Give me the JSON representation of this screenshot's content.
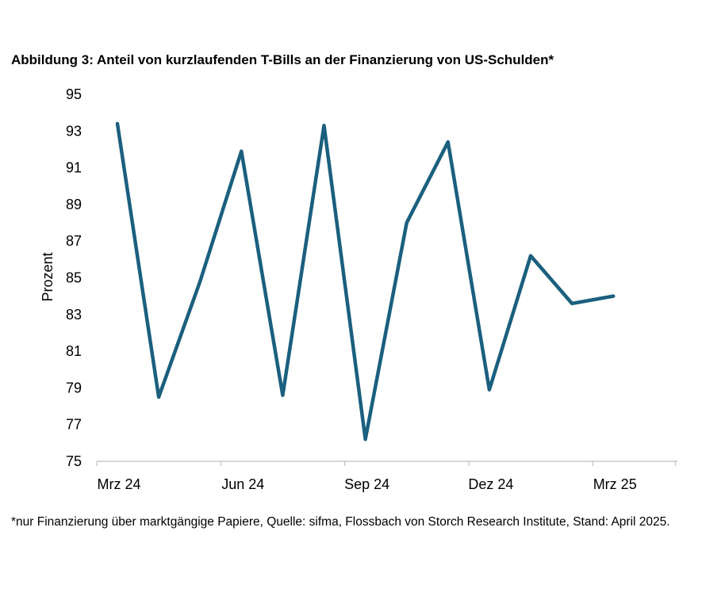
{
  "title": "Abbildung 3: Anteil von kurzlaufenden T-Bills an der Finanzierung von US-Schulden*",
  "footnote": "*nur Finanzierung über marktgängige Papiere, Quelle: sifma, Flossbach von Storch Research Institute, Stand: April 2025.",
  "chart_data": {
    "type": "line",
    "title": "Abbildung 3: Anteil von kurzlaufenden T-Bills an der Finanzierung von US-Schulden*",
    "xlabel": "",
    "ylabel": "Prozent",
    "ylim": [
      75,
      95
    ],
    "yticks": [
      "75",
      "77",
      "79",
      "81",
      "83",
      "85",
      "87",
      "89",
      "91",
      "93",
      "95"
    ],
    "xticks": [
      "Mrz 24",
      "Jun 24",
      "Sep 24",
      "Dez 24",
      "Mrz 25"
    ],
    "categories": [
      "Mrz 24",
      "Apr 24",
      "Mai 24",
      "Jun 24",
      "Jul 24",
      "Aug 24",
      "Sep 24",
      "Okt 24",
      "Nov 24",
      "Dez 24",
      "Jan 25",
      "Feb 25",
      "Mrz 25"
    ],
    "series": [
      {
        "values": [
          93.4,
          78.5,
          84.8,
          91.9,
          78.6,
          93.3,
          76.2,
          88.0,
          92.4,
          78.9,
          86.2,
          83.6,
          84.0
        ]
      }
    ],
    "grid": false,
    "line_color": "#1b5f7e"
  }
}
